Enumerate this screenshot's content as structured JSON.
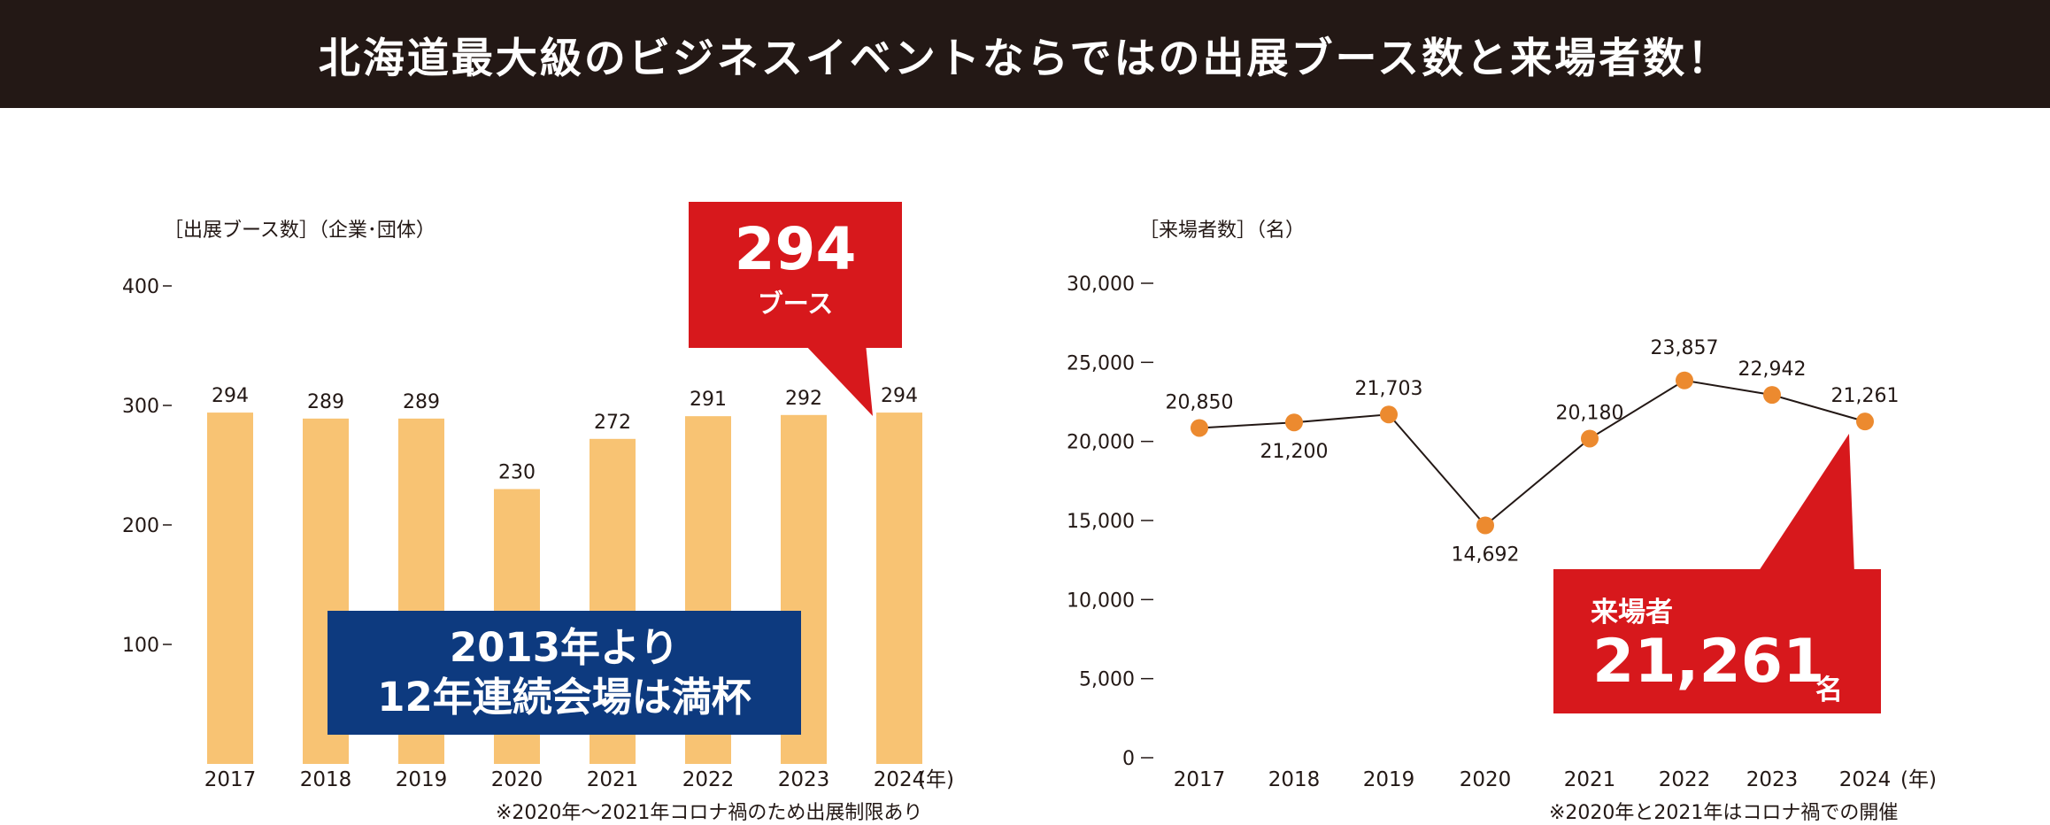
{
  "header": {
    "title": "北海道最大級のビジネスイベントならではの出展ブース数と来場者数！"
  },
  "left_chart": {
    "ylabel": "［出展ブース数］（企業･団体）",
    "x_unit": "(年)",
    "note": "※2020年〜2021年コロナ禍のため出展制限あり",
    "callout": {
      "value": "294",
      "unit": "ブース"
    },
    "banner_line1": "2013年より",
    "banner_line2": "12年連続会場は満杯"
  },
  "right_chart": {
    "ylabel": "［来場者数］（名）",
    "x_unit": "(年)",
    "note": "※2020年と2021年はコロナ禍での開催",
    "callout": {
      "label": "来場者",
      "value": "21,261",
      "unit": "名"
    }
  },
  "colors": {
    "banner_bg": "#231815",
    "bar": "#f8c373",
    "point": "#ec8a2f",
    "callout_red": "#d7181c",
    "banner_blue": "#0d3a7f"
  },
  "chart_data": [
    {
      "type": "bar",
      "categories": [
        "2017",
        "2018",
        "2019",
        "2020",
        "2021",
        "2022",
        "2023",
        "2024"
      ],
      "values": [
        294,
        289,
        289,
        230,
        272,
        291,
        292,
        294
      ],
      "value_labels": [
        "294",
        "289",
        "289",
        "230",
        "272",
        "291",
        "292",
        "294"
      ],
      "ylim": [
        0,
        400
      ],
      "yticks": [
        100,
        200,
        300,
        400
      ],
      "ytick_labels": [
        "100",
        "200",
        "300",
        "400"
      ],
      "ylabel": "［出展ブース数］（企業･団体）",
      "grid": false
    },
    {
      "type": "line",
      "categories": [
        "2017",
        "2018",
        "2019",
        "2020",
        "2021",
        "2022",
        "2023",
        "2024"
      ],
      "values": [
        20850,
        21200,
        21703,
        14692,
        20180,
        23857,
        22942,
        21261
      ],
      "value_labels": [
        "20,850",
        "21,200",
        "21,703",
        "14,692",
        "20,180",
        "23,857",
        "22,942",
        "21,261"
      ],
      "ylim": [
        0,
        30000
      ],
      "yticks": [
        0,
        5000,
        10000,
        15000,
        20000,
        25000,
        30000
      ],
      "ytick_labels": [
        "0",
        "5,000",
        "10,000",
        "15,000",
        "20,000",
        "25,000",
        "30,000"
      ],
      "ylabel": "［来場者数］（名）",
      "grid": false
    }
  ]
}
